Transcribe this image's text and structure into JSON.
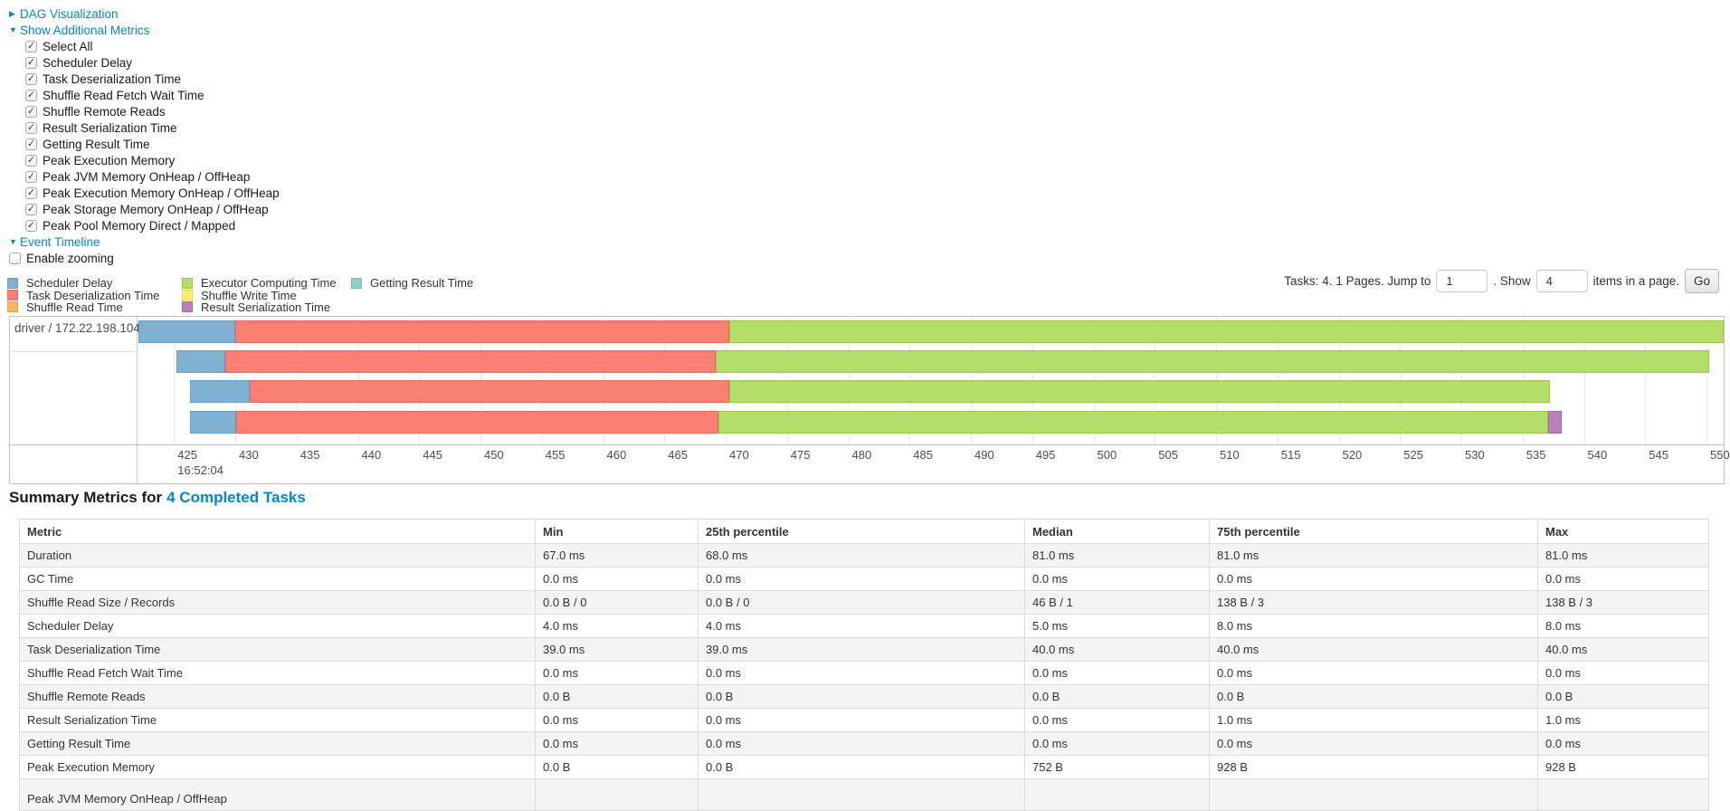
{
  "icons": {
    "collapsed": "▶",
    "expanded": "▼",
    "check": "✓"
  },
  "colors": {
    "link": "#0088CC",
    "scheduler_delay": "#80B1D3",
    "task_deserialization": "#FB8072",
    "shuffle_read": "#FDB462",
    "executor_computing": "#B3DE69",
    "shuffle_write": "#FFED6F",
    "result_serialization": "#BC80BD",
    "getting_result": "#8DD3C7"
  },
  "border_colors": {
    "scheduler_delay": "#6a9ec4",
    "task_deserialization": "#e86a5c",
    "shuffle_read": "#eda34a",
    "executor_computing": "#9cc947",
    "shuffle_write": "#efdc55",
    "result_serialization": "#a668a8",
    "getting_result": "#76c1b3"
  },
  "controls": {
    "dag": {
      "label": "DAG Visualization"
    },
    "metrics_toggle": {
      "label": "Show Additional Metrics"
    },
    "checkboxes": [
      {
        "label": "Select All",
        "checked": true
      },
      {
        "label": "Scheduler Delay",
        "checked": true
      },
      {
        "label": "Task Deserialization Time",
        "checked": true
      },
      {
        "label": "Shuffle Read Fetch Wait Time",
        "checked": true
      },
      {
        "label": "Shuffle Remote Reads",
        "checked": true
      },
      {
        "label": "Result Serialization Time",
        "checked": true
      },
      {
        "label": "Getting Result Time",
        "checked": true
      },
      {
        "label": "Peak Execution Memory",
        "checked": true
      },
      {
        "label": "Peak JVM Memory OnHeap / OffHeap",
        "checked": true
      },
      {
        "label": "Peak Execution Memory OnHeap / OffHeap",
        "checked": true
      },
      {
        "label": "Peak Storage Memory OnHeap / OffHeap",
        "checked": true
      },
      {
        "label": "Peak Pool Memory Direct / Mapped",
        "checked": true
      }
    ],
    "timeline_toggle": {
      "label": "Event Timeline"
    },
    "enable_zooming": {
      "label": "Enable zooming",
      "checked": false
    }
  },
  "legend": {
    "columns": [
      [
        {
          "label": "Scheduler Delay",
          "key": "scheduler_delay"
        },
        {
          "label": "Task Deserialization Time",
          "key": "task_deserialization"
        },
        {
          "label": "Shuffle Read Time",
          "key": "shuffle_read"
        }
      ],
      [
        {
          "label": "Executor Computing Time",
          "key": "executor_computing"
        },
        {
          "label": "Shuffle Write Time",
          "key": "shuffle_write"
        },
        {
          "label": "Result Serialization Time",
          "key": "result_serialization"
        }
      ],
      [
        {
          "label": "Getting Result Time",
          "key": "getting_result"
        }
      ]
    ]
  },
  "pagination": {
    "prefix": "Tasks: 4. 1 Pages. Jump to",
    "jump_value": "1",
    "mid": ". Show",
    "show_value": "4",
    "suffix": "items in a page.",
    "go_label": "Go"
  },
  "chart_data": {
    "type": "gantt",
    "title": "Event Timeline",
    "group_label": "driver / 172.22.198.104",
    "x_axis": {
      "min": 422.1,
      "max": 551.4,
      "ticks_from": 425,
      "ticks_to": 550,
      "tick_step": 5,
      "origin_label": "16:52:04"
    },
    "tasks": [
      {
        "segments": [
          {
            "metric": "scheduler_delay",
            "start": 422.1,
            "end": 430.0
          },
          {
            "metric": "task_deserialization",
            "start": 430.0,
            "end": 470.3
          },
          {
            "metric": "executor_computing",
            "start": 470.3,
            "end": 551.4
          }
        ]
      },
      {
        "segments": [
          {
            "metric": "scheduler_delay",
            "start": 425.2,
            "end": 429.2
          },
          {
            "metric": "task_deserialization",
            "start": 429.2,
            "end": 469.2
          },
          {
            "metric": "executor_computing",
            "start": 469.2,
            "end": 550.2
          }
        ]
      },
      {
        "segments": [
          {
            "metric": "scheduler_delay",
            "start": 426.3,
            "end": 431.2
          },
          {
            "metric": "task_deserialization",
            "start": 431.2,
            "end": 470.3
          },
          {
            "metric": "executor_computing",
            "start": 470.3,
            "end": 537.2
          }
        ]
      },
      {
        "segments": [
          {
            "metric": "scheduler_delay",
            "start": 426.3,
            "end": 430.1
          },
          {
            "metric": "task_deserialization",
            "start": 430.1,
            "end": 469.4
          },
          {
            "metric": "executor_computing",
            "start": 469.4,
            "end": 537.1
          },
          {
            "metric": "result_serialization",
            "start": 537.1,
            "end": 538.2
          }
        ]
      }
    ]
  },
  "summary": {
    "title_prefix": "Summary Metrics for",
    "title_link": "4 Completed Tasks",
    "headers": [
      "Metric",
      "Min",
      "25th percentile",
      "Median",
      "75th percentile",
      "Max"
    ],
    "rows": [
      [
        "Duration",
        "67.0 ms",
        "68.0 ms",
        "81.0 ms",
        "81.0 ms",
        "81.0 ms"
      ],
      [
        "GC Time",
        "0.0 ms",
        "0.0 ms",
        "0.0 ms",
        "0.0 ms",
        "0.0 ms"
      ],
      [
        "Shuffle Read Size / Records",
        "0.0 B / 0",
        "0.0 B / 0",
        "46 B / 1",
        "138 B / 3",
        "138 B / 3"
      ],
      [
        "Scheduler Delay",
        "4.0 ms",
        "4.0 ms",
        "5.0 ms",
        "8.0 ms",
        "8.0 ms"
      ],
      [
        "Task Deserialization Time",
        "39.0 ms",
        "39.0 ms",
        "40.0 ms",
        "40.0 ms",
        "40.0 ms"
      ],
      [
        "Shuffle Read Fetch Wait Time",
        "0.0 ms",
        "0.0 ms",
        "0.0 ms",
        "0.0 ms",
        "0.0 ms"
      ],
      [
        "Shuffle Remote Reads",
        "0.0 B",
        "0.0 B",
        "0.0 B",
        "0.0 B",
        "0.0 B"
      ],
      [
        "Result Serialization Time",
        "0.0 ms",
        "0.0 ms",
        "0.0 ms",
        "1.0 ms",
        "1.0 ms"
      ],
      [
        "Getting Result Time",
        "0.0 ms",
        "0.0 ms",
        "0.0 ms",
        "0.0 ms",
        "0.0 ms"
      ],
      [
        "Peak Execution Memory",
        "0.0 B",
        "0.0 B",
        "752 B",
        "928 B",
        "928 B"
      ]
    ],
    "partial_row_label": "Peak JVM Memory OnHeap / OffHeap"
  }
}
